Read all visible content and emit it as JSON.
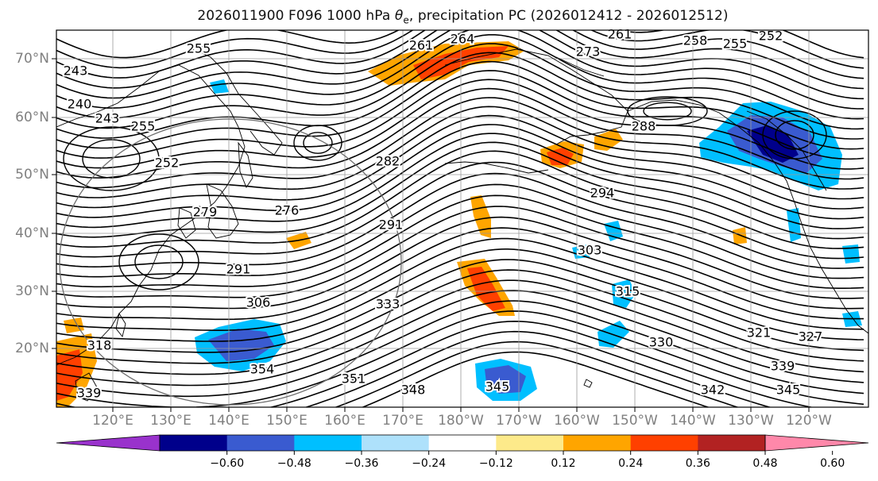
{
  "title": "2026011900 F096 1000 hPa θe, precipitation PC (2026012412 - 2026012512)",
  "title_parts": {
    "prefix": "2026011900 F096 1000 hPa ",
    "theta": "θ",
    "sub": "e",
    "suffix": ", precipitation PC (2026012412 - 2026012512)"
  },
  "map": {
    "lat_labels": [
      "70°N",
      "60°N",
      "50°N",
      "40°N",
      "30°N",
      "20°N"
    ],
    "lon_labels": [
      "120°E",
      "130°E",
      "140°E",
      "150°E",
      "160°E",
      "170°E",
      "180°W",
      "170°W",
      "160°W",
      "150°W",
      "140°W",
      "130°W",
      "120°W"
    ],
    "contour_labels": [
      "243",
      "240",
      "243",
      "255",
      "252",
      "255",
      "261",
      "264",
      "261",
      "258",
      "255",
      "252",
      "273",
      "288",
      "294",
      "303",
      "291",
      "282",
      "276",
      "279",
      "315",
      "321",
      "327",
      "330",
      "339",
      "342",
      "345",
      "348",
      "351",
      "354",
      "333",
      "306",
      "291",
      "318",
      "339",
      "345"
    ],
    "contour_levels": [
      240,
      243,
      246,
      249,
      252,
      255,
      258,
      261,
      264,
      267,
      270,
      273,
      276,
      279,
      282,
      285,
      288,
      291,
      294,
      297,
      300,
      303,
      306,
      309,
      312,
      315,
      318,
      321,
      324,
      327,
      330,
      333,
      336,
      339,
      342,
      345,
      348,
      351,
      354
    ],
    "colors": {
      "coast": "#000000",
      "grid": "#9a9a9a",
      "ring": "#6e6e6e",
      "tick_label": "#808080"
    }
  },
  "colorbar": {
    "ticks": [
      "−0.60",
      "−0.48",
      "−0.36",
      "−0.24",
      "−0.12",
      "0.12",
      "0.24",
      "0.36",
      "0.48",
      "0.60"
    ],
    "bounds": [
      -0.6,
      -0.48,
      -0.36,
      -0.24,
      -0.12,
      0.12,
      0.24,
      0.36,
      0.48,
      0.6
    ],
    "colors": [
      "#9932cc",
      "#00008b",
      "#3a5bd0",
      "#00bfff",
      "#aee1fb",
      "#ffffff",
      "#fdea8a",
      "#ffa500",
      "#ff4000",
      "#b22222",
      "#ff88aa"
    ]
  }
}
